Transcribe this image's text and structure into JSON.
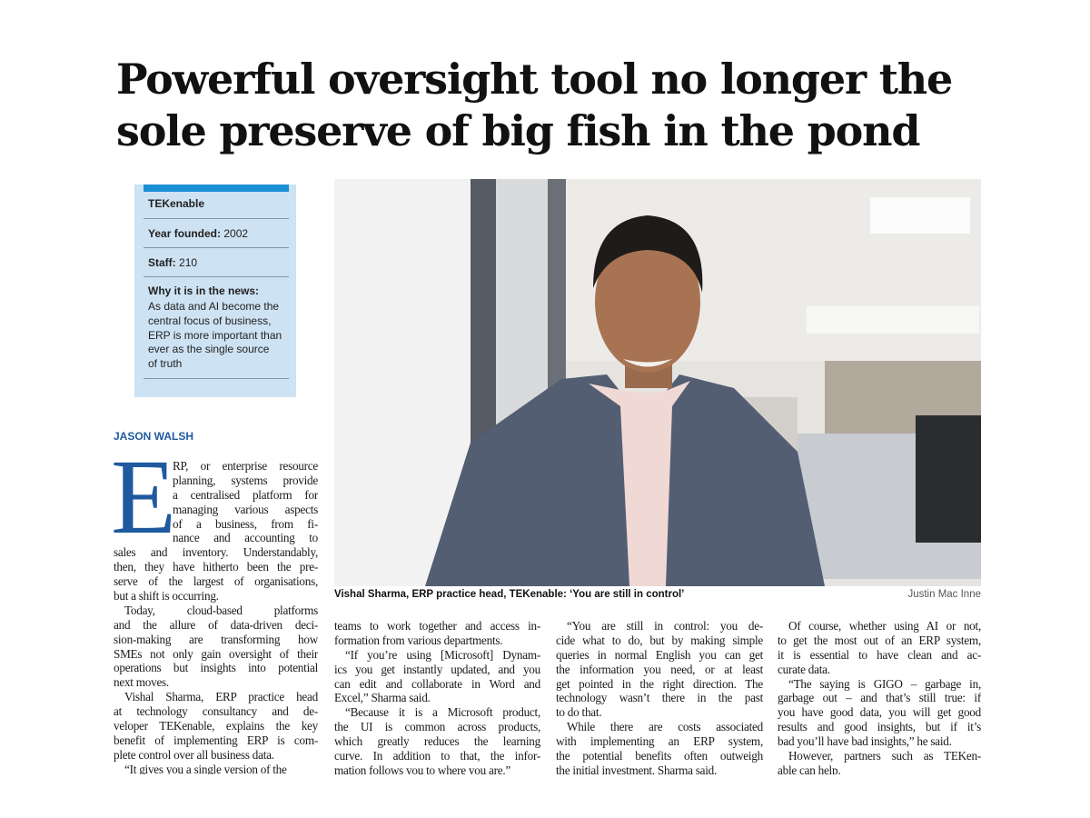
{
  "headline": {
    "lines": [
      "Powerful oversight tool no longer the",
      "sole preserve of big fish in the pond"
    ]
  },
  "fact_box": {
    "company": "TEKenable",
    "year_label": "Year founded:",
    "year_value": "2002",
    "staff_label": "Staff:",
    "staff_value": "210",
    "news_label": "Why it is in the news:",
    "news_lines": [
      "As data and AI become the",
      "central focus of business,",
      "ERP is more important than",
      "ever as the single source",
      "of truth"
    ]
  },
  "byline": "JASON WALSH",
  "photo": {
    "caption": "Vishal Sharma, ERP practice head, TEKenable: ‘You are still in control’",
    "credit": "Justin Mac Inne"
  },
  "article": {
    "drop_cap": "E",
    "columns": [
      {
        "paragraphs": [
          {
            "lines": [
              "RP, or enterprise resource",
              "planning, systems provide",
              "a centralised platform for",
              "managing various aspects",
              "of a business, from fi-",
              "nance and accounting to",
              "sales and inventory. Understandably,",
              "then, they have hitherto been the pre-",
              "serve of the largest of organisations,",
              "but a shift is occurring."
            ]
          },
          {
            "lines": [
              "Today, cloud-based platforms",
              "and the allure of data-driven deci-",
              "sion-making are transforming how",
              "SMEs not only gain oversight of their",
              "operations but insights into potential",
              "next moves."
            ]
          },
          {
            "lines": [
              "Vishal Sharma, ERP practice head",
              "at technology consultancy and de-",
              "veloper TEKenable, explains the key",
              "benefit of implementing ERP is com-",
              "plete control over all business data."
            ]
          },
          {
            "lines": [
              "“It gives you a single version of the"
            ]
          }
        ]
      },
      {
        "paragraphs": [
          {
            "lines": [
              "teams to work together and access in-",
              "formation from various departments."
            ]
          },
          {
            "lines": [
              "“If you’re using [Microsoft] Dynam-",
              "ics you get instantly updated, and you",
              "can edit and collaborate in Word and",
              "Excel,” Sharma said."
            ]
          },
          {
            "lines": [
              "“Because it is a Microsoft product,",
              "the UI is common across products,",
              "which greatly reduces the learning",
              "curve. In addition to that, the infor-",
              "mation follows you to where you are.”"
            ]
          }
        ]
      },
      {
        "paragraphs": [
          {
            "lines": [
              "“You are still in control: you de-",
              "cide what to do, but by making simple",
              "queries in normal English you can get",
              "the information you need, or at least",
              "get pointed in the right direction. The",
              "technology wasn’t there in the past",
              "to do that."
            ]
          },
          {
            "lines": [
              "While there are costs associated",
              "with implementing an ERP system,",
              "the potential benefits often outweigh",
              "the initial investment, Sharma said."
            ]
          }
        ]
      },
      {
        "paragraphs": [
          {
            "lines": [
              "Of course, whether using AI or not,",
              "to get the most out of an ERP system,",
              "it is essential to have clean and ac-",
              "curate data."
            ]
          },
          {
            "lines": [
              "“The saying is GIGO – garbage in,",
              "garbage out – and that’s still true: if",
              "you have good data, you will get good",
              "results and good insights, but if it’s",
              "bad you’ll have bad insights,” he said."
            ]
          },
          {
            "lines": [
              "However, partners such as TEKen-",
              "able can help."
            ]
          }
        ]
      }
    ]
  }
}
